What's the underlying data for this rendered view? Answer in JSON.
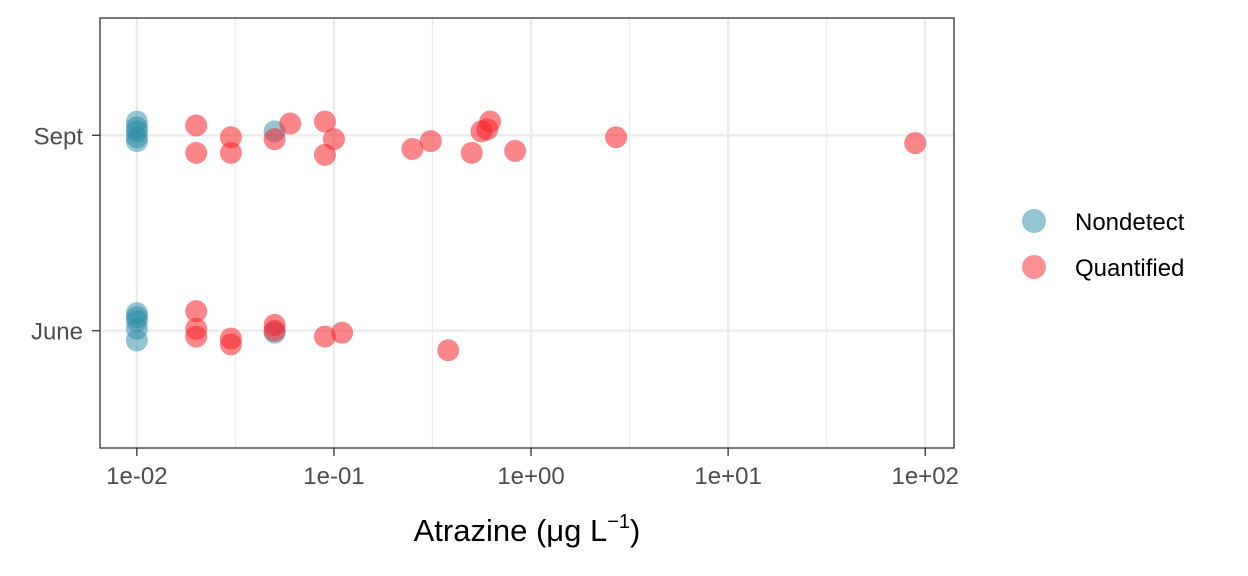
{
  "chart_data": {
    "type": "scatter",
    "title": "",
    "xlabel": "Atrazine (μg L",
    "xlabel_superscript": "−1",
    "xlabel_close": ")",
    "ylabel": "",
    "x_scale": "log10",
    "xlim": [
      0.0065,
      140
    ],
    "x_ticks": [
      0.01,
      0.1,
      1,
      10,
      100
    ],
    "x_tick_labels": [
      "1e-02",
      "1e-01",
      "1e+00",
      "1e+01",
      "1e+02"
    ],
    "categories": [
      "June",
      "Sept"
    ],
    "grid": true,
    "legend_position": "right",
    "series": [
      {
        "name": "Nondetect",
        "color": "#2a8ba5",
        "points": [
          {
            "x": 0.01,
            "y": "Sept",
            "jitter": 0.07
          },
          {
            "x": 0.01,
            "y": "Sept",
            "jitter": 0.04
          },
          {
            "x": 0.01,
            "y": "Sept",
            "jitter": 0.02
          },
          {
            "x": 0.01,
            "y": "Sept",
            "jitter": -0.01
          },
          {
            "x": 0.01,
            "y": "Sept",
            "jitter": -0.03
          },
          {
            "x": 0.05,
            "y": "Sept",
            "jitter": 0.02
          },
          {
            "x": 0.01,
            "y": "June",
            "jitter": 0.09
          },
          {
            "x": 0.01,
            "y": "June",
            "jitter": 0.07
          },
          {
            "x": 0.01,
            "y": "June",
            "jitter": 0.05
          },
          {
            "x": 0.01,
            "y": "June",
            "jitter": 0.01
          },
          {
            "x": 0.01,
            "y": "June",
            "jitter": -0.05
          },
          {
            "x": 0.05,
            "y": "June",
            "jitter": -0.01
          }
        ]
      },
      {
        "name": "Quantified",
        "color": "#f8222a",
        "points": [
          {
            "x": 0.02,
            "y": "Sept",
            "jitter": 0.05
          },
          {
            "x": 0.02,
            "y": "Sept",
            "jitter": -0.09
          },
          {
            "x": 0.03,
            "y": "Sept",
            "jitter": -0.01
          },
          {
            "x": 0.03,
            "y": "Sept",
            "jitter": -0.09
          },
          {
            "x": 0.05,
            "y": "Sept",
            "jitter": -0.02
          },
          {
            "x": 0.06,
            "y": "Sept",
            "jitter": 0.06
          },
          {
            "x": 0.09,
            "y": "Sept",
            "jitter": 0.07
          },
          {
            "x": 0.09,
            "y": "Sept",
            "jitter": -0.1
          },
          {
            "x": 0.1,
            "y": "Sept",
            "jitter": -0.02
          },
          {
            "x": 0.25,
            "y": "Sept",
            "jitter": -0.07
          },
          {
            "x": 0.31,
            "y": "Sept",
            "jitter": -0.03
          },
          {
            "x": 0.5,
            "y": "Sept",
            "jitter": -0.09
          },
          {
            "x": 0.56,
            "y": "Sept",
            "jitter": 0.02
          },
          {
            "x": 0.6,
            "y": "Sept",
            "jitter": 0.03
          },
          {
            "x": 0.62,
            "y": "Sept",
            "jitter": 0.07
          },
          {
            "x": 0.83,
            "y": "Sept",
            "jitter": -0.08
          },
          {
            "x": 2.7,
            "y": "Sept",
            "jitter": -0.01
          },
          {
            "x": 89,
            "y": "Sept",
            "jitter": -0.04
          },
          {
            "x": 0.02,
            "y": "June",
            "jitter": 0.1
          },
          {
            "x": 0.02,
            "y": "June",
            "jitter": 0.01
          },
          {
            "x": 0.02,
            "y": "June",
            "jitter": -0.03
          },
          {
            "x": 0.03,
            "y": "June",
            "jitter": -0.04
          },
          {
            "x": 0.03,
            "y": "June",
            "jitter": -0.07
          },
          {
            "x": 0.05,
            "y": "June",
            "jitter": 0.03
          },
          {
            "x": 0.05,
            "y": "June",
            "jitter": 0.0
          },
          {
            "x": 0.09,
            "y": "June",
            "jitter": -0.03
          },
          {
            "x": 0.11,
            "y": "June",
            "jitter": -0.01
          },
          {
            "x": 0.38,
            "y": "June",
            "jitter": -0.1
          }
        ]
      }
    ]
  }
}
